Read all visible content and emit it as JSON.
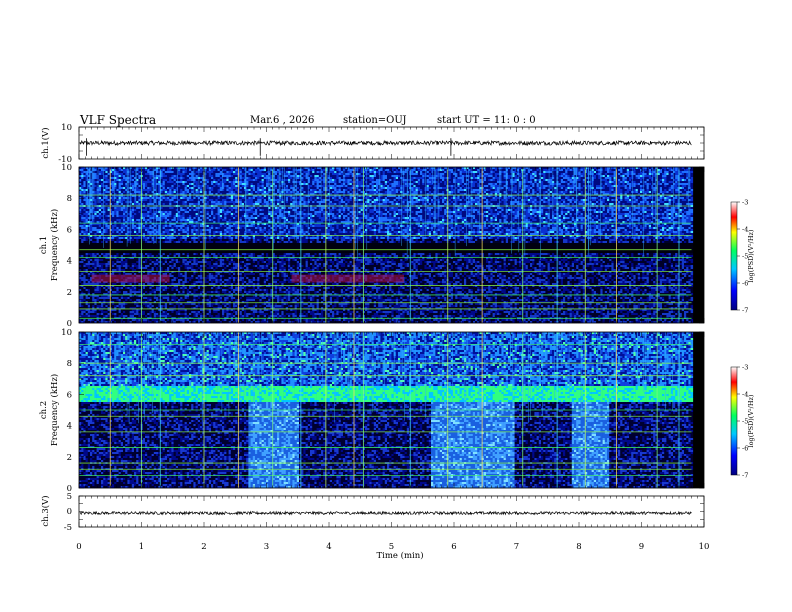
{
  "header": {
    "title": "VLF Spectra",
    "date": "Mar.6 , 2026",
    "station": "station=OUJ",
    "start_ut": "start UT = 11: 0 : 0"
  },
  "chart_data": [
    {
      "type": "line",
      "panel": "ch1-waveform",
      "ylabel": "ch.1(V)",
      "ylim": [
        -10,
        10
      ],
      "yticks": [
        "10",
        "-10"
      ],
      "x_range_min": [
        0,
        9.8
      ],
      "signal_level": 0,
      "color": "#000000"
    },
    {
      "type": "heatmap",
      "panel": "ch1-spectrogram",
      "ylabel": "ch.1\nFrequency (kHz)",
      "ylim": [
        0,
        10
      ],
      "yticks": [
        "0",
        "2",
        "4",
        "6",
        "8",
        "10"
      ],
      "x_range_min": [
        0,
        9.8
      ],
      "colorbar": {
        "label": "log(PSD)(V²/Hz)",
        "range": [
          -7,
          -3
        ],
        "ticks": [
          "-3",
          "-4",
          "-5",
          "-6",
          "-7"
        ]
      },
      "features": {
        "red_band_khz": [
          2.6,
          3.1
        ],
        "red_band_segments_min": [
          [
            0.2,
            1.45
          ],
          [
            3.4,
            5.2
          ]
        ],
        "green_tone_lines_khz": [
          0.3,
          0.9,
          1.3,
          1.8,
          2.4,
          3.3,
          4.2,
          4.7,
          5.6,
          6.4,
          7.5,
          8.2
        ],
        "impulse_times_min": [
          0.5,
          1.0,
          1.3,
          2.0,
          2.55,
          3.1,
          3.55,
          3.95,
          4.4,
          4.55,
          5.3,
          5.9,
          6.45,
          7.1,
          7.65,
          8.1,
          8.6,
          9.25,
          9.6
        ]
      }
    },
    {
      "type": "heatmap",
      "panel": "ch2-spectrogram",
      "ylabel": "ch.2\nFrequency (kHz)",
      "ylim": [
        0,
        10
      ],
      "yticks": [
        "0",
        "2",
        "4",
        "6",
        "8",
        "10"
      ],
      "x_range_min": [
        0,
        9.8
      ],
      "colorbar": {
        "label": "log(PSD)(V²/Hz)",
        "range": [
          -7,
          -3
        ],
        "ticks": [
          "-3",
          "-4",
          "-5",
          "-6",
          "-7"
        ]
      },
      "features": {
        "bright_band_khz": [
          5.6,
          6.6
        ],
        "noise_blocks_min": [
          [
            2.7,
            3.5
          ],
          [
            5.6,
            6.95
          ],
          [
            7.85,
            8.45
          ]
        ],
        "green_tone_lines_khz": [
          0.8,
          1.2,
          1.6,
          2.6,
          3.6,
          4.6,
          5.0,
          7.2,
          8.0,
          9.2
        ],
        "impulse_times_min": [
          0.5,
          1.0,
          1.3,
          2.0,
          2.55,
          3.1,
          3.55,
          3.95,
          4.4,
          4.55,
          5.3,
          5.9,
          6.45,
          7.1,
          7.65,
          8.1,
          8.6,
          9.25,
          9.6
        ]
      }
    },
    {
      "type": "line",
      "panel": "ch3-waveform",
      "ylabel": "ch.3(V)",
      "ylim": [
        -5,
        5
      ],
      "yticks": [
        "5",
        "0",
        "-5"
      ],
      "x_range_min": [
        0,
        9.8
      ],
      "signal_level": -0.5,
      "xlabel": "Time (min)",
      "xlim": [
        0,
        10
      ],
      "xticks": [
        "0",
        "1",
        "2",
        "3",
        "4",
        "5",
        "6",
        "7",
        "8",
        "9",
        "10"
      ],
      "color": "#000000"
    }
  ]
}
